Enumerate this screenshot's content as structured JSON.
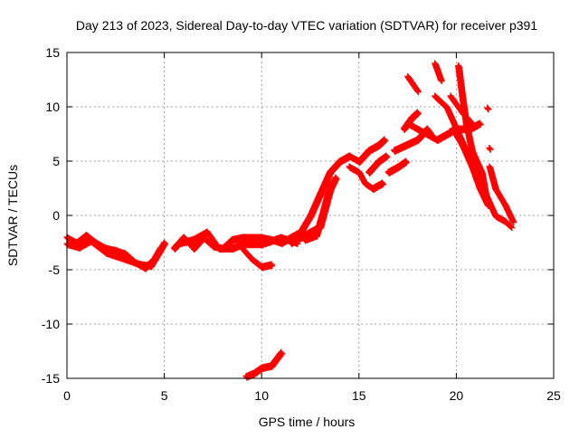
{
  "chart_data": {
    "type": "scatter",
    "title": "Day 213 of 2023, Sidereal Day-to-day VTEC variation (SDTVAR) for receiver p391",
    "xlabel": "GPS time / hours",
    "ylabel": "SDTVAR / TECUs",
    "xlim": [
      0,
      25
    ],
    "ylim": [
      -15,
      15
    ],
    "xticks": [
      0,
      5,
      10,
      15,
      20,
      25
    ],
    "yticks": [
      -15,
      -10,
      -5,
      0,
      5,
      10,
      15
    ],
    "grid": true,
    "marker": "plus",
    "color": "#ff0000",
    "tracks": [
      [
        [
          0,
          -2
        ],
        [
          0.5,
          -2.5
        ],
        [
          1,
          -1.8
        ],
        [
          1.5,
          -2.5
        ],
        [
          2,
          -3
        ],
        [
          2.5,
          -3.2
        ],
        [
          3,
          -3.5
        ],
        [
          3.5,
          -4.3
        ],
        [
          4,
          -4.8
        ],
        [
          4.5,
          -4
        ],
        [
          5,
          -2.5
        ]
      ],
      [
        [
          0,
          -2.6
        ],
        [
          0.6,
          -2.9
        ],
        [
          1.2,
          -2.3
        ],
        [
          2,
          -3.4
        ],
        [
          3,
          -4
        ],
        [
          3.8,
          -4.5
        ],
        [
          4.3,
          -4.6
        ],
        [
          4.8,
          -3
        ]
      ],
      [
        [
          5.5,
          -3
        ],
        [
          6,
          -2
        ],
        [
          6.5,
          -3
        ],
        [
          7,
          -2
        ],
        [
          7.5,
          -2.8
        ],
        [
          8,
          -3
        ],
        [
          8.5,
          -2.2
        ],
        [
          9,
          -2
        ],
        [
          9.5,
          -2
        ],
        [
          10,
          -2
        ],
        [
          10.5,
          -2.2
        ],
        [
          11,
          -2.5
        ],
        [
          11.5,
          -2
        ],
        [
          12,
          -1.5
        ],
        [
          12.5,
          0
        ],
        [
          13,
          2
        ],
        [
          13.5,
          4
        ],
        [
          14,
          5
        ],
        [
          14.5,
          5.5
        ],
        [
          15,
          5
        ]
      ],
      [
        [
          5.8,
          -2.5
        ],
        [
          6.5,
          -2.2
        ],
        [
          7.2,
          -1.5
        ],
        [
          7.8,
          -3
        ],
        [
          8.5,
          -3
        ],
        [
          9,
          -2.6
        ],
        [
          10,
          -2.6
        ],
        [
          11,
          -2
        ],
        [
          11.8,
          -2.5
        ]
      ],
      [
        [
          9,
          -3
        ],
        [
          9.5,
          -4
        ],
        [
          10,
          -4.7
        ],
        [
          10.5,
          -4.5
        ]
      ],
      [
        [
          9.2,
          -14.8
        ],
        [
          9.6,
          -14.5
        ],
        [
          10,
          -14
        ],
        [
          10.5,
          -13.8
        ],
        [
          11,
          -12.6
        ]
      ],
      [
        [
          11.5,
          -2.5
        ],
        [
          12,
          -2
        ],
        [
          12.5,
          -1.5
        ],
        [
          13,
          -1
        ],
        [
          13.3,
          1
        ],
        [
          13.6,
          3
        ]
      ],
      [
        [
          12.2,
          -2.2
        ],
        [
          12.8,
          -1.8
        ],
        [
          13.1,
          0
        ],
        [
          13.4,
          2
        ],
        [
          13.8,
          3.5
        ]
      ],
      [
        [
          14.5,
          4.5
        ],
        [
          15,
          4
        ],
        [
          15.3,
          3
        ],
        [
          15.7,
          2.5
        ],
        [
          16.2,
          3
        ]
      ],
      [
        [
          15,
          5
        ],
        [
          15.5,
          6
        ],
        [
          16,
          6.5
        ],
        [
          16.3,
          7
        ]
      ],
      [
        [
          15.5,
          4
        ],
        [
          16,
          5
        ],
        [
          16.4,
          5.5
        ]
      ],
      [
        [
          16.5,
          4
        ],
        [
          17,
          4.5
        ],
        [
          17.4,
          5
        ]
      ],
      [
        [
          16.8,
          6
        ],
        [
          17.4,
          6.5
        ],
        [
          18,
          7
        ],
        [
          18.5,
          8
        ],
        [
          18.7,
          7.5
        ]
      ],
      [
        [
          17.3,
          8
        ],
        [
          17.7,
          9
        ],
        [
          18,
          9.5
        ]
      ],
      [
        [
          17.5,
          8.5
        ],
        [
          18,
          8
        ],
        [
          18.5,
          7.5
        ],
        [
          19,
          7
        ],
        [
          19.5,
          7.5
        ],
        [
          20,
          8
        ],
        [
          20.7,
          8
        ],
        [
          21.2,
          8.5
        ]
      ],
      [
        [
          18.9,
          11
        ],
        [
          19.5,
          10
        ],
        [
          20,
          8
        ],
        [
          20.5,
          6
        ],
        [
          21,
          4
        ],
        [
          21.5,
          2
        ],
        [
          22,
          0
        ],
        [
          22.5,
          -0.5
        ],
        [
          22.8,
          -1
        ]
      ],
      [
        [
          19.8,
          8
        ],
        [
          20.3,
          6.5
        ],
        [
          20.8,
          4.5
        ],
        [
          21.2,
          2.5
        ],
        [
          21.6,
          1
        ]
      ],
      [
        [
          20.1,
          13.8
        ],
        [
          20.3,
          11
        ],
        [
          20.5,
          8.5
        ],
        [
          20.8,
          6
        ],
        [
          21.3,
          4
        ],
        [
          21.5,
          2
        ]
      ],
      [
        [
          17.5,
          12.8
        ],
        [
          18,
          11.5
        ]
      ],
      [
        [
          18.9,
          14
        ],
        [
          19.2,
          12.5
        ]
      ],
      [
        [
          19.7,
          11
        ],
        [
          20.3,
          9.5
        ],
        [
          20.8,
          8.5
        ]
      ],
      [
        [
          21.6,
          9.9
        ],
        [
          21.6,
          9.9
        ]
      ],
      [
        [
          21.7,
          6.2
        ],
        [
          21.7,
          6.2
        ]
      ],
      [
        [
          21.7,
          4.5
        ],
        [
          22,
          2.5
        ],
        [
          22.5,
          1
        ],
        [
          22.9,
          -0.5
        ]
      ]
    ]
  }
}
